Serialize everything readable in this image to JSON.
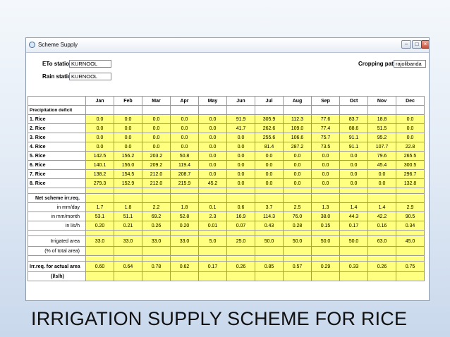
{
  "window": {
    "title": "Scheme Supply",
    "controls": {
      "minimize": "−",
      "maximize": "□",
      "close": "×"
    }
  },
  "fields": {
    "eto_label": "ETo station",
    "eto_value": "KURNOOL",
    "rain_label": "Rain station",
    "rain_value": "KURNOOL",
    "cropping_label": "Cropping pattern",
    "cropping_value": "rajolibanda"
  },
  "table": {
    "months": [
      "Jan",
      "Feb",
      "Mar",
      "Apr",
      "May",
      "Jun",
      "Jul",
      "Aug",
      "Sep",
      "Oct",
      "Nov",
      "Dec"
    ],
    "precip_label": "Precipitation deficit",
    "rice_rows": [
      {
        "label": "1. Rice",
        "values": [
          "0.0",
          "0.0",
          "0.0",
          "0.0",
          "0.0",
          "91.9",
          "305.9",
          "112.3",
          "77.6",
          "83.7",
          "18.8",
          "0.0"
        ]
      },
      {
        "label": "2. Rice",
        "values": [
          "0.0",
          "0.0",
          "0.0",
          "0.0",
          "0.0",
          "41.7",
          "262.6",
          "109.0",
          "77.4",
          "88.6",
          "51.5",
          "0.0"
        ]
      },
      {
        "label": "3. Rice",
        "values": [
          "0.0",
          "0.0",
          "0.0",
          "0.0",
          "0.0",
          "0.0",
          "255.6",
          "106.6",
          "75.7",
          "91.1",
          "95.2",
          "0.0"
        ]
      },
      {
        "label": "4. Rice",
        "values": [
          "0.0",
          "0.0",
          "0.0",
          "0.0",
          "0.0",
          "0.0",
          "81.4",
          "287.2",
          "73.5",
          "91.1",
          "107.7",
          "22.8"
        ]
      },
      {
        "label": "5. Rice",
        "values": [
          "142.5",
          "156.2",
          "203.2",
          "50.8",
          "0.0",
          "0.0",
          "0.0",
          "0.0",
          "0.0",
          "0.0",
          "79.6",
          "265.5"
        ]
      },
      {
        "label": "6. Rice",
        "values": [
          "140.1",
          "156.0",
          "209.2",
          "119.4",
          "0.0",
          "0.0",
          "0.0",
          "0.0",
          "0.0",
          "0.0",
          "45.4",
          "300.5"
        ]
      },
      {
        "label": "7. Rice",
        "values": [
          "138.2",
          "154.5",
          "212.0",
          "208.7",
          "0.0",
          "0.0",
          "0.0",
          "0.0",
          "0.0",
          "0.0",
          "0.0",
          "296.7"
        ]
      },
      {
        "label": "8. Rice",
        "values": [
          "279.3",
          "152.9",
          "212.0",
          "215.9",
          "45.2",
          "0.0",
          "0.0",
          "0.0",
          "0.0",
          "0.0",
          "0.0",
          "132.8"
        ]
      }
    ],
    "net_label": "Net scheme irr.req.",
    "net_rows": [
      {
        "label": "in mm/day",
        "values": [
          "1.7",
          "1.8",
          "2.2",
          "1.8",
          "0.1",
          "0.6",
          "3.7",
          "2.5",
          "1.3",
          "1.4",
          "1.4",
          "2.9"
        ]
      },
      {
        "label": "in mm/month",
        "values": [
          "53.1",
          "51.1",
          "69.2",
          "52.8",
          "2.3",
          "16.9",
          "114.3",
          "76.0",
          "38.0",
          "44.3",
          "42.2",
          "90.5"
        ]
      },
      {
        "label": "in l/s/h",
        "values": [
          "0.20",
          "0.21",
          "0.26",
          "0.20",
          "0.01",
          "0.07",
          "0.43",
          "0.28",
          "0.15",
          "0.17",
          "0.16",
          "0.34"
        ]
      }
    ],
    "irrigated": {
      "label": "Irrigated area",
      "values": [
        "33.0",
        "33.0",
        "33.0",
        "33.0",
        "5.0",
        "25.0",
        "50.0",
        "50.0",
        "50.0",
        "50.0",
        "63.0",
        "45.0"
      ]
    },
    "irrigated_sub": "(% of total area)",
    "actual": {
      "label": "Irr.req. for actual area",
      "values": [
        "0.60",
        "0.64",
        "0.78",
        "0.62",
        "0.17",
        "0.26",
        "0.85",
        "0.57",
        "0.29",
        "0.33",
        "0.26",
        "0.75"
      ]
    },
    "actual_sub": "(l/s/h)"
  },
  "caption": "IRRIGATION SUPPLY SCHEME FOR RICE"
}
